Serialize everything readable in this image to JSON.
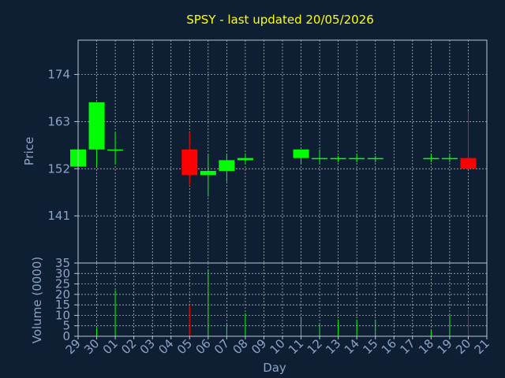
{
  "title": "SPSY - last updated 20/05/2026",
  "colors": {
    "background": "#0f1f33",
    "title": "#ffff00",
    "axis_text": "#8aa4c8",
    "axis_line": "#b8c4d4",
    "grid": "#c8c8c8",
    "up": "#00ff00",
    "down": "#ff0000"
  },
  "chart_data": [
    {
      "type": "candlestick",
      "title": "SPSY - last updated 20/05/2026",
      "ylabel": "Price",
      "xlabel": "",
      "ylim": [
        130,
        182
      ],
      "yticks": [
        141,
        152,
        163,
        174
      ],
      "grid": true,
      "x": [
        "29",
        "30",
        "01",
        "02",
        "03",
        "04",
        "05",
        "06",
        "07",
        "08",
        "09",
        "10",
        "11",
        "12",
        "13",
        "14",
        "15",
        "16",
        "17",
        "18",
        "19",
        "20",
        "21"
      ],
      "candles": [
        {
          "day": "29",
          "open": 152.5,
          "close": 156.5,
          "high": 156.5,
          "low": 152.5
        },
        {
          "day": "30",
          "open": 156.5,
          "close": 167.5,
          "high": 167.5,
          "low": 152.5
        },
        {
          "day": "01",
          "open": 156.5,
          "close": 156.5,
          "high": 160.5,
          "low": 153.0
        },
        {
          "day": "05",
          "open": 156.5,
          "close": 150.5,
          "high": 160.5,
          "low": 148.0
        },
        {
          "day": "06",
          "open": 150.5,
          "close": 151.5,
          "high": 155.5,
          "low": 145.5
        },
        {
          "day": "07",
          "open": 151.5,
          "close": 154.0,
          "high": 155.5,
          "low": 149.0
        },
        {
          "day": "08",
          "open": 154.0,
          "close": 154.5,
          "high": 155.5,
          "low": 153.0
        },
        {
          "day": "11",
          "open": 154.5,
          "close": 156.5,
          "high": 156.5,
          "low": 153.0
        },
        {
          "day": "12",
          "open": 154.5,
          "close": 154.5,
          "high": 156.5,
          "low": 153.0
        },
        {
          "day": "13",
          "open": 154.5,
          "close": 154.5,
          "high": 155.0,
          "low": 153.5
        },
        {
          "day": "14",
          "open": 154.5,
          "close": 154.5,
          "high": 155.5,
          "low": 153.5
        },
        {
          "day": "15",
          "open": 154.5,
          "close": 154.5,
          "high": 155.0,
          "low": 153.5
        },
        {
          "day": "18",
          "open": 154.5,
          "close": 154.5,
          "high": 155.5,
          "low": 153.5
        },
        {
          "day": "19",
          "open": 154.5,
          "close": 154.5,
          "high": 155.5,
          "low": 153.5
        },
        {
          "day": "20",
          "open": 154.5,
          "close": 152.0,
          "high": 165.5,
          "low": 152.0
        }
      ]
    },
    {
      "type": "bar",
      "ylabel": "Volume (0000)",
      "xlabel": "Day",
      "ylim": [
        0,
        35
      ],
      "yticks": [
        0,
        5,
        10,
        15,
        20,
        25,
        30,
        35
      ],
      "grid": true,
      "x": [
        "29",
        "30",
        "01",
        "02",
        "03",
        "04",
        "05",
        "06",
        "07",
        "08",
        "09",
        "10",
        "11",
        "12",
        "13",
        "14",
        "15",
        "16",
        "17",
        "18",
        "19",
        "20",
        "21"
      ],
      "volumes": [
        {
          "day": "29",
          "value": 0,
          "dir": "up"
        },
        {
          "day": "30",
          "value": 4,
          "dir": "up"
        },
        {
          "day": "01",
          "value": 22,
          "dir": "up"
        },
        {
          "day": "05",
          "value": 15,
          "dir": "down"
        },
        {
          "day": "06",
          "value": 32,
          "dir": "up"
        },
        {
          "day": "07",
          "value": 6,
          "dir": "up"
        },
        {
          "day": "08",
          "value": 11,
          "dir": "up"
        },
        {
          "day": "11",
          "value": 9,
          "dir": "up"
        },
        {
          "day": "12",
          "value": 6,
          "dir": "up"
        },
        {
          "day": "13",
          "value": 8,
          "dir": "up"
        },
        {
          "day": "14",
          "value": 8,
          "dir": "up"
        },
        {
          "day": "15",
          "value": 8,
          "dir": "up"
        },
        {
          "day": "18",
          "value": 3,
          "dir": "up"
        },
        {
          "day": "19",
          "value": 10,
          "dir": "up"
        },
        {
          "day": "20",
          "value": 13,
          "dir": "down"
        }
      ]
    }
  ]
}
